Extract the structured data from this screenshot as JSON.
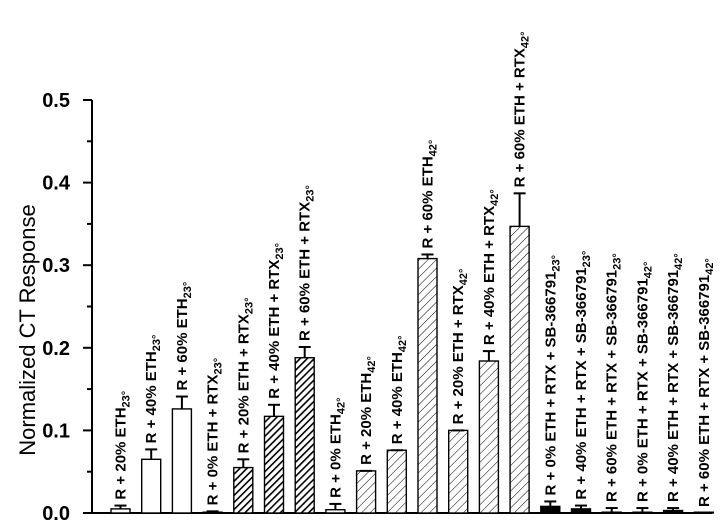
{
  "chart_data": {
    "type": "bar",
    "ylabel": "Normalized CT Response",
    "ylim": [
      0,
      0.5
    ],
    "yticks": [
      "0.0",
      "0.1",
      "0.2",
      "0.3",
      "0.4",
      "0.5"
    ],
    "grid": false,
    "bars": [
      {
        "label": "R + 20% ETH",
        "sub": "23°",
        "value": 0.005,
        "error": 0.004,
        "fill": "white"
      },
      {
        "label": "R + 40% ETH",
        "sub": "23°",
        "value": 0.065,
        "error": 0.012,
        "fill": "white"
      },
      {
        "label": "R + 60% ETH",
        "sub": "23°",
        "value": 0.126,
        "error": 0.015,
        "fill": "white"
      },
      {
        "label": "R + 0% ETH + RTX",
        "sub": "23°",
        "value": 0.0,
        "error": 0.002,
        "fill": "white"
      },
      {
        "label": "R + 20% ETH + RTX",
        "sub": "23°",
        "value": 0.055,
        "error": 0.01,
        "fill": "dark-hatch"
      },
      {
        "label": "R + 40% ETH + RTX",
        "sub": "23°",
        "value": 0.117,
        "error": 0.014,
        "fill": "dark-hatch"
      },
      {
        "label": "R + 60% ETH + RTX",
        "sub": "23°",
        "value": 0.188,
        "error": 0.013,
        "fill": "dark-hatch"
      },
      {
        "label": "R + 0% ETH",
        "sub": "42°",
        "value": 0.004,
        "error": 0.007,
        "fill": "white"
      },
      {
        "label": "R + 20% ETH",
        "sub": "42°",
        "value": 0.051,
        "error": 0.0,
        "fill": "light-hatch"
      },
      {
        "label": "R + 40% ETH",
        "sub": "42°",
        "value": 0.076,
        "error": 0.0,
        "fill": "light-hatch"
      },
      {
        "label": "R + 60% ETH",
        "sub": "42°",
        "value": 0.308,
        "error": 0.005,
        "fill": "light-hatch"
      },
      {
        "label": "R + 20% ETH + RTX",
        "sub": "42°",
        "value": 0.1,
        "error": 0.0,
        "fill": "light-hatch"
      },
      {
        "label": "R + 40% ETH + RTX",
        "sub": "42°",
        "value": 0.184,
        "error": 0.012,
        "fill": "light-hatch"
      },
      {
        "label": "R + 60% ETH + RTX",
        "sub": "42°",
        "value": 0.347,
        "error": 0.04,
        "fill": "light-hatch"
      },
      {
        "label": "R + 0% ETH + RTX + SB-366791",
        "sub": "23°",
        "value": 0.008,
        "error": 0.006,
        "fill": "black"
      },
      {
        "label": "R + 40% ETH + RTX + SB-366791",
        "sub": "23°",
        "value": 0.005,
        "error": 0.004,
        "fill": "black"
      },
      {
        "label": "R + 60% ETH + RTX + SB-366791",
        "sub": "23°",
        "value": 0.001,
        "error": 0.005,
        "fill": "black"
      },
      {
        "label": "R + 0% ETH + RTX + SB-366791",
        "sub": "42°",
        "value": 0.0,
        "error": 0.006,
        "fill": "white"
      },
      {
        "label": "R + 40% ETH + RTX + SB-366791",
        "sub": "42°",
        "value": 0.003,
        "error": 0.003,
        "fill": "black"
      },
      {
        "label": "R + 60% ETH + RTX + SB-366791",
        "sub": "42°",
        "value": 0.0,
        "error": 0.0,
        "fill": "black"
      }
    ]
  }
}
